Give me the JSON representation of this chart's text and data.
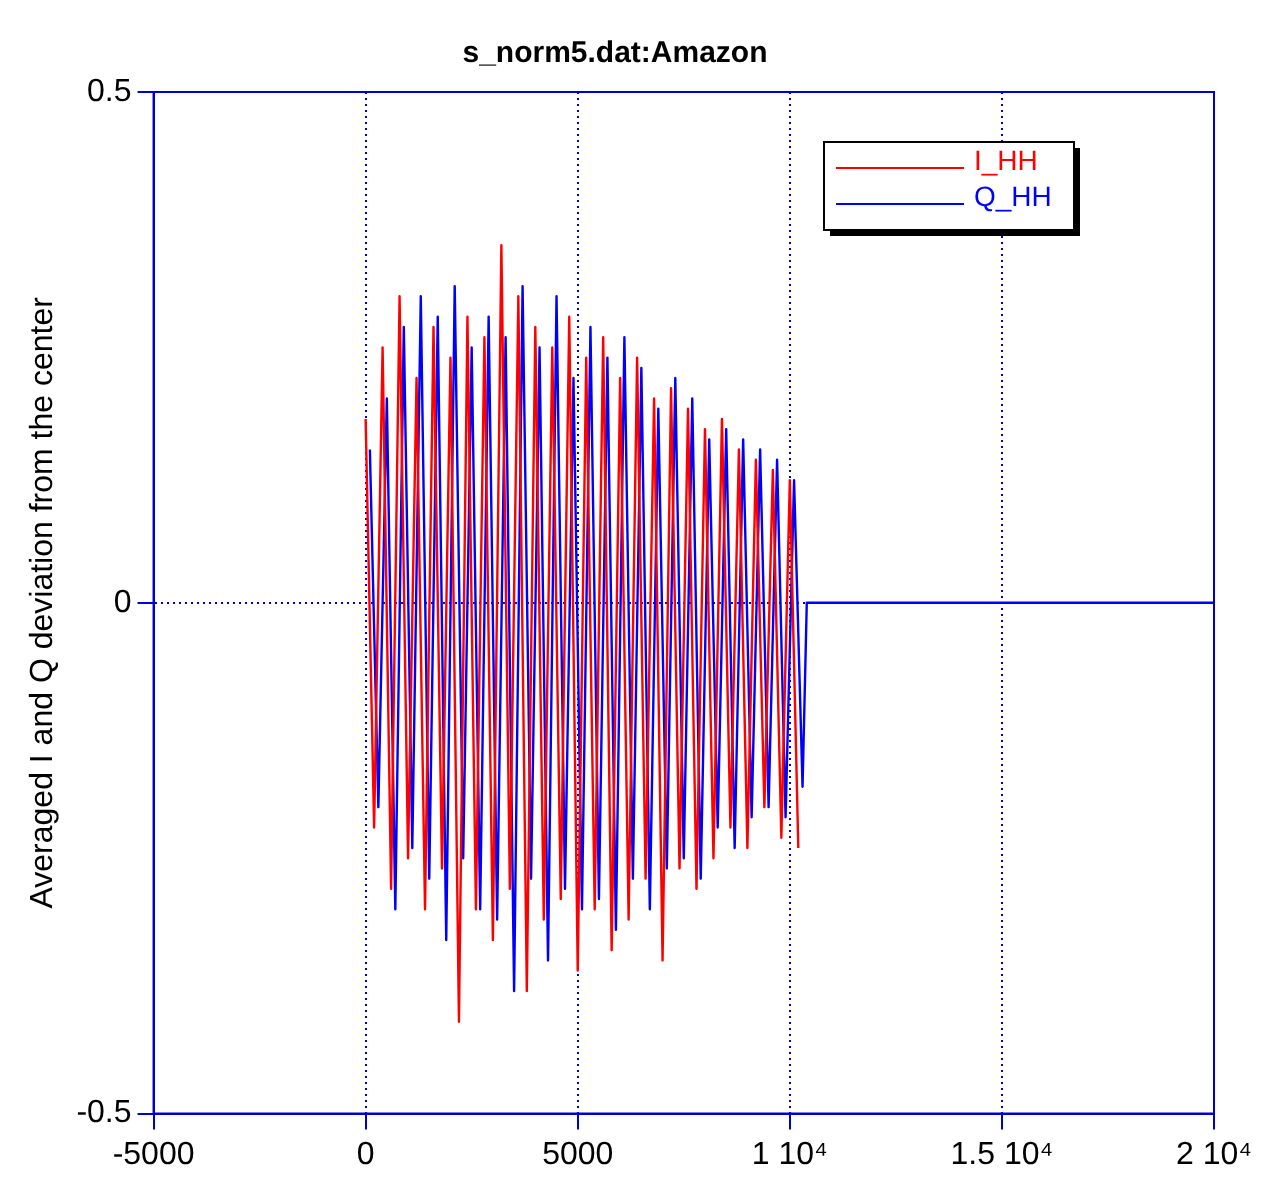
{
  "chart_data": {
    "type": "line",
    "title": "s_norm5.dat:Amazon",
    "ylabel": "Averaged I and Q deviation from the center",
    "xlim": [
      -5000,
      20000
    ],
    "xticks": [
      -5000,
      0,
      5000,
      {
        "value": 10000,
        "label": "1 10⁴"
      },
      {
        "value": 15000,
        "label": "1.5 10⁴"
      },
      {
        "value": 20000,
        "label": "2 10⁴"
      }
    ],
    "ylim": [
      -0.5,
      0.5
    ],
    "yticks": [
      -0.5,
      0,
      0.5
    ],
    "grid": true,
    "legend": "top right",
    "marker": "none",
    "line_style": "solid",
    "series": [
      {
        "name": "I_HH",
        "color": "#ff0000",
        "x": [
          0,
          200,
          400,
          600,
          800,
          1000,
          1200,
          1400,
          1600,
          1800,
          2000,
          2200,
          2400,
          2600,
          2800,
          3000,
          3200,
          3400,
          3600,
          3800,
          4000,
          4200,
          4400,
          4600,
          4800,
          5000,
          5200,
          5400,
          5600,
          5800,
          6000,
          6200,
          6400,
          6600,
          6800,
          7000,
          7200,
          7400,
          7600,
          7800,
          8000,
          8200,
          8400,
          8600,
          8800,
          9000,
          9200,
          9400,
          9600,
          9800,
          10000,
          10200
        ],
        "values": [
          0.18,
          -0.22,
          0.25,
          -0.28,
          0.3,
          -0.25,
          0.22,
          -0.3,
          0.27,
          -0.26,
          0.24,
          -0.41,
          0.28,
          -0.3,
          0.26,
          -0.33,
          0.35,
          -0.28,
          0.3,
          -0.38,
          0.27,
          -0.31,
          0.25,
          -0.29,
          0.28,
          -0.36,
          0.24,
          -0.3,
          0.26,
          -0.34,
          0.22,
          -0.31,
          0.24,
          -0.27,
          0.2,
          -0.35,
          0.21,
          -0.26,
          0.19,
          -0.28,
          0.17,
          -0.25,
          0.18,
          -0.22,
          0.15,
          -0.24,
          0.14,
          -0.2,
          0.13,
          -0.23,
          0.12,
          -0.24
        ]
      },
      {
        "name": "Q_HH",
        "color": "#0000ff",
        "x": [
          100,
          300,
          500,
          700,
          900,
          1100,
          1300,
          1500,
          1700,
          1900,
          2100,
          2300,
          2500,
          2700,
          2900,
          3100,
          3300,
          3500,
          3700,
          3900,
          4100,
          4300,
          4500,
          4700,
          4900,
          5100,
          5300,
          5500,
          5700,
          5900,
          6100,
          6300,
          6500,
          6700,
          6900,
          7100,
          7300,
          7500,
          7700,
          7900,
          8100,
          8300,
          8500,
          8700,
          8900,
          9100,
          9300,
          9500,
          9700,
          9900,
          10100,
          10300,
          10400,
          20000
        ],
        "values": [
          0.15,
          -0.2,
          0.2,
          -0.3,
          0.27,
          -0.24,
          0.3,
          -0.27,
          0.28,
          -0.33,
          0.31,
          -0.25,
          0.25,
          -0.3,
          0.28,
          -0.31,
          0.26,
          -0.38,
          0.31,
          -0.27,
          0.25,
          -0.35,
          0.3,
          -0.28,
          0.22,
          -0.3,
          0.27,
          -0.29,
          0.24,
          -0.32,
          0.26,
          -0.27,
          0.23,
          -0.3,
          0.19,
          -0.26,
          0.22,
          -0.25,
          0.2,
          -0.27,
          0.16,
          -0.22,
          0.17,
          -0.24,
          0.16,
          -0.21,
          0.15,
          -0.2,
          0.14,
          -0.21,
          0.12,
          -0.18,
          0,
          0
        ]
      }
    ]
  }
}
